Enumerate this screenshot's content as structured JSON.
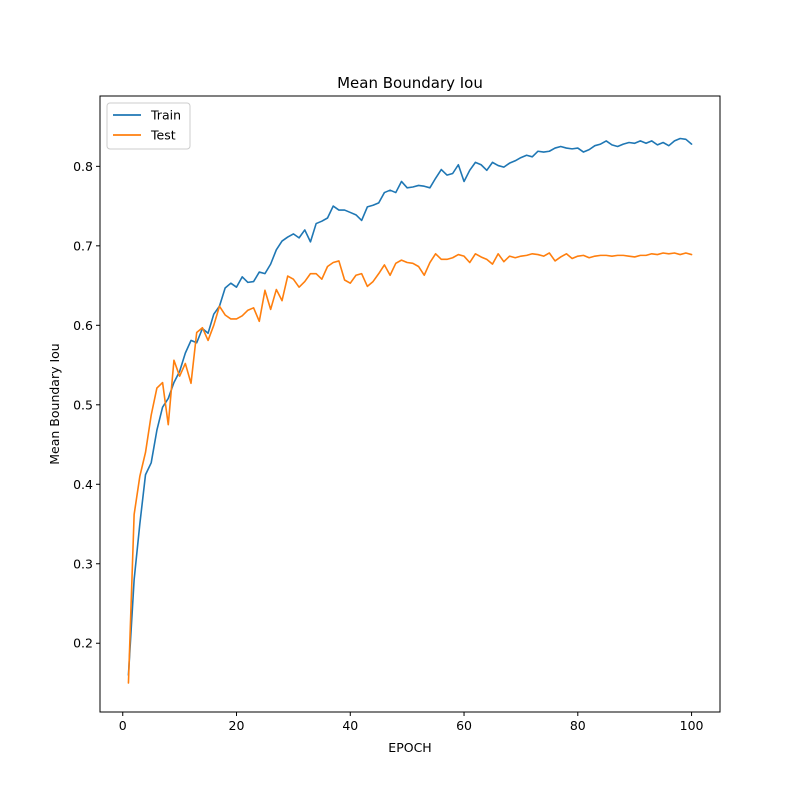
{
  "chart_data": {
    "type": "line",
    "title": "Mean Boundary Iou",
    "xlabel": "EPOCH",
    "ylabel": "Mean Boundary Iou",
    "xlim": [
      -4,
      105
    ],
    "ylim": [
      0.1135,
      0.8885
    ],
    "xticks": [
      0,
      20,
      40,
      60,
      80,
      100
    ],
    "yticks": [
      0.2,
      0.3,
      0.4,
      0.5,
      0.6,
      0.7,
      0.8
    ],
    "grid": false,
    "legend_position": "top-left",
    "x": [
      1,
      2,
      3,
      4,
      5,
      6,
      7,
      8,
      9,
      10,
      11,
      12,
      13,
      14,
      15,
      16,
      17,
      18,
      19,
      20,
      21,
      22,
      23,
      24,
      25,
      26,
      27,
      28,
      29,
      30,
      31,
      32,
      33,
      34,
      35,
      36,
      37,
      38,
      39,
      40,
      41,
      42,
      43,
      44,
      45,
      46,
      47,
      48,
      49,
      50,
      51,
      52,
      53,
      54,
      55,
      56,
      57,
      58,
      59,
      60,
      61,
      62,
      63,
      64,
      65,
      66,
      67,
      68,
      69,
      70,
      71,
      72,
      73,
      74,
      75,
      76,
      77,
      78,
      79,
      80,
      81,
      82,
      83,
      84,
      85,
      86,
      87,
      88,
      89,
      90,
      91,
      92,
      93,
      94,
      95,
      96,
      97,
      98,
      99,
      100
    ],
    "series": [
      {
        "name": "Train",
        "color": "#1f77b4",
        "values": [
          0.16,
          0.28,
          0.35,
          0.412,
          0.427,
          0.468,
          0.497,
          0.508,
          0.528,
          0.542,
          0.565,
          0.581,
          0.578,
          0.596,
          0.59,
          0.614,
          0.624,
          0.647,
          0.653,
          0.648,
          0.661,
          0.654,
          0.655,
          0.667,
          0.665,
          0.677,
          0.695,
          0.706,
          0.711,
          0.715,
          0.71,
          0.72,
          0.705,
          0.728,
          0.731,
          0.735,
          0.75,
          0.745,
          0.745,
          0.742,
          0.739,
          0.732,
          0.749,
          0.751,
          0.754,
          0.767,
          0.77,
          0.767,
          0.781,
          0.773,
          0.774,
          0.776,
          0.775,
          0.773,
          0.785,
          0.796,
          0.789,
          0.791,
          0.802,
          0.781,
          0.795,
          0.805,
          0.802,
          0.795,
          0.805,
          0.801,
          0.799,
          0.804,
          0.807,
          0.811,
          0.814,
          0.812,
          0.819,
          0.818,
          0.819,
          0.823,
          0.825,
          0.823,
          0.822,
          0.823,
          0.818,
          0.821,
          0.826,
          0.828,
          0.832,
          0.827,
          0.825,
          0.828,
          0.83,
          0.829,
          0.832,
          0.829,
          0.832,
          0.827,
          0.83,
          0.826,
          0.832,
          0.835,
          0.834,
          0.828
        ]
      },
      {
        "name": "Test",
        "color": "#ff7f0e",
        "values": [
          0.15,
          0.362,
          0.41,
          0.44,
          0.487,
          0.521,
          0.528,
          0.475,
          0.556,
          0.536,
          0.552,
          0.527,
          0.591,
          0.597,
          0.581,
          0.6,
          0.624,
          0.613,
          0.608,
          0.608,
          0.612,
          0.619,
          0.622,
          0.605,
          0.644,
          0.62,
          0.645,
          0.631,
          0.662,
          0.658,
          0.648,
          0.655,
          0.665,
          0.665,
          0.658,
          0.674,
          0.679,
          0.681,
          0.657,
          0.653,
          0.663,
          0.665,
          0.649,
          0.655,
          0.665,
          0.676,
          0.663,
          0.678,
          0.682,
          0.679,
          0.678,
          0.674,
          0.663,
          0.679,
          0.69,
          0.683,
          0.683,
          0.685,
          0.689,
          0.687,
          0.679,
          0.69,
          0.686,
          0.683,
          0.677,
          0.69,
          0.68,
          0.687,
          0.685,
          0.687,
          0.688,
          0.69,
          0.689,
          0.687,
          0.691,
          0.681,
          0.686,
          0.69,
          0.684,
          0.687,
          0.688,
          0.685,
          0.687,
          0.688,
          0.688,
          0.687,
          0.688,
          0.688,
          0.687,
          0.686,
          0.688,
          0.688,
          0.69,
          0.689,
          0.691,
          0.69,
          0.691,
          0.689,
          0.691,
          0.689
        ]
      }
    ]
  }
}
